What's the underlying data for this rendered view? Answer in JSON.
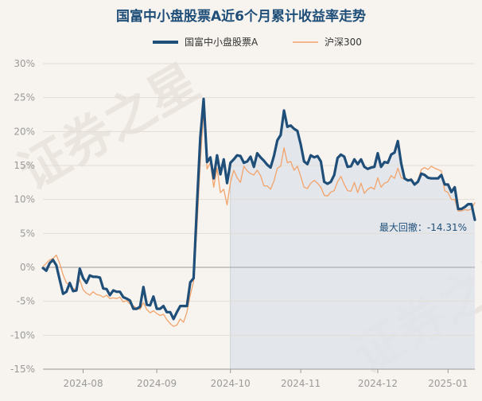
{
  "chart_data": {
    "type": "line",
    "title": "国富中小盘股票A近6个月累计收益率走势",
    "watermark": "证券之星",
    "ylim": [
      -15,
      30
    ],
    "yticks": [
      "30%",
      "25%",
      "20%",
      "15%",
      "10%",
      "5%",
      "0%",
      "-5%",
      "-10%",
      "-15%"
    ],
    "ytick_values": [
      30,
      25,
      20,
      15,
      10,
      5,
      0,
      -5,
      -10,
      -15
    ],
    "xticks": [
      "2024-08",
      "2024-09",
      "2024-10",
      "2024-11",
      "2024-12",
      "2025-01"
    ],
    "xtick_index": [
      12,
      34,
      56,
      77,
      100,
      121
    ],
    "n_points": 130,
    "grid": true,
    "legend_position": "top",
    "annotation": "最大回撤：-14.31%",
    "drawdown_range_index": [
      56,
      129
    ],
    "colors": {
      "fund": "#1f4e79",
      "index": "#f2a36b",
      "zero_line": "#b8b8b8",
      "drawdown_fill": "#dfe4ea"
    },
    "series": [
      {
        "name": "国富中小盘股票A",
        "values": [
          -0.1,
          -0.5,
          0.6,
          1.1,
          0.3,
          -1.8,
          -3.9,
          -3.6,
          -2.3,
          -3.5,
          -3.4,
          -0.2,
          -1.6,
          -2.3,
          -1.2,
          -1.4,
          -1.4,
          -1.5,
          -3.1,
          -3.2,
          -4.1,
          -3.4,
          -3.6,
          -3.6,
          -4.4,
          -4.6,
          -4.9,
          -6.1,
          -6.1,
          -5.8,
          -2.9,
          -5.5,
          -5.6,
          -4.3,
          -6.1,
          -6.1,
          -5.7,
          -6.6,
          -6.6,
          -7.6,
          -6.6,
          -5.7,
          -5.7,
          -5.7,
          -2.2,
          -1.6,
          9.1,
          19.1,
          24.8,
          15.5,
          16.2,
          13.1,
          16.5,
          13.7,
          15.9,
          12.4,
          15.4,
          15.9,
          16.5,
          16.4,
          15.4,
          15.6,
          16.3,
          14.8,
          16.8,
          16.2,
          15.7,
          15.1,
          14.7,
          16.4,
          18.7,
          19.5,
          23.1,
          20.7,
          20.9,
          20.4,
          20.1,
          18.1,
          15.6,
          15.2,
          16.5,
          16.2,
          16.4,
          15.6,
          12.6,
          12.3,
          12.6,
          13.6,
          16.1,
          16.6,
          16.3,
          14.8,
          14.9,
          15.9,
          15.2,
          15.9,
          14.8,
          14.5,
          14.7,
          14.8,
          16.8,
          14.8,
          15.5,
          15.4,
          16.6,
          16.9,
          18.6,
          15.3,
          13.1,
          12.8,
          12.9,
          12.2,
          12.6,
          13.8,
          13.6,
          13.2,
          13.1,
          13.1,
          13.1,
          13.6,
          12.2,
          12.2,
          11.1,
          11.8,
          8.6,
          8.6,
          8.9,
          9.3,
          9.3,
          7.0
        ]
      },
      {
        "name": "沪深300",
        "values": [
          0.1,
          0.6,
          1.1,
          1.3,
          1.8,
          0.6,
          -1.1,
          -2.3,
          -2.6,
          -3.2,
          -3.1,
          -1.8,
          -3.3,
          -3.8,
          -4.1,
          -3.6,
          -4.0,
          -4.1,
          -4.4,
          -4.1,
          -4.6,
          -4.5,
          -4.6,
          -4.4,
          -5.1,
          -4.9,
          -5.4,
          -5.7,
          -6.0,
          -6.2,
          -5.2,
          -6.2,
          -6.7,
          -6.4,
          -6.8,
          -7.1,
          -6.9,
          -7.7,
          -8.3,
          -8.7,
          -8.5,
          -7.6,
          -8.1,
          -6.6,
          -4.1,
          -2.1,
          5.8,
          15.4,
          23.0,
          14.5,
          15.4,
          11.8,
          14.6,
          11.0,
          11.5,
          9.2,
          12.5,
          14.3,
          13.2,
          12.5,
          14.9,
          14.2,
          13.8,
          13.6,
          14.3,
          13.5,
          12.0,
          12.0,
          11.5,
          12.7,
          14.6,
          14.9,
          17.6,
          15.4,
          15.6,
          14.3,
          14.9,
          13.4,
          11.8,
          11.6,
          12.4,
          12.8,
          12.4,
          11.8,
          10.6,
          10.5,
          11.1,
          11.3,
          12.6,
          13.4,
          12.2,
          11.3,
          11.2,
          12.5,
          11.0,
          12.4,
          10.9,
          11.5,
          11.8,
          11.5,
          13.2,
          11.8,
          12.4,
          12.6,
          13.5,
          13.1,
          14.6,
          13.2,
          13.0,
          12.7,
          13.1,
          12.1,
          12.8,
          14.4,
          14.7,
          14.4,
          14.9,
          14.6,
          14.4,
          14.2,
          11.3,
          11.0,
          10.0,
          10.0,
          8.3,
          8.3,
          8.5,
          8.4,
          8.6,
          9.5
        ]
      }
    ]
  }
}
